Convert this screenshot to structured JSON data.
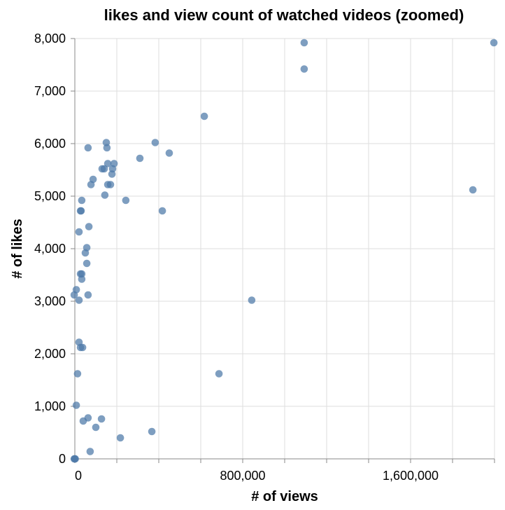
{
  "chart_data": {
    "type": "scatter",
    "title": "likes and view count of watched videos (zoomed)",
    "xlabel": "# of views",
    "ylabel": "# of likes",
    "xlim": [
      0,
      2000000
    ],
    "ylim": [
      0,
      8000
    ],
    "x_ticks": [
      0,
      200000,
      400000,
      600000,
      800000,
      1000000,
      1200000,
      1400000,
      1600000,
      1800000,
      2000000
    ],
    "x_tick_labels": [
      {
        "value": 0,
        "label": "0"
      },
      {
        "value": 800000,
        "label": "800,000"
      },
      {
        "value": 1600000,
        "label": "1,600,000"
      }
    ],
    "y_ticks": [
      0,
      1000,
      2000,
      3000,
      4000,
      5000,
      6000,
      7000,
      8000
    ],
    "y_tick_labels": [
      {
        "value": 0,
        "label": "0"
      },
      {
        "value": 1000,
        "label": "1,000"
      },
      {
        "value": 2000,
        "label": "2,000"
      },
      {
        "value": 3000,
        "label": "3,000"
      },
      {
        "value": 4000,
        "label": "4,000"
      },
      {
        "value": 5000,
        "label": "5,000"
      },
      {
        "value": 6000,
        "label": "6,000"
      },
      {
        "value": 7000,
        "label": "7,000"
      },
      {
        "value": 8000,
        "label": "8,000"
      }
    ],
    "grid": true,
    "point_color": "#4c78a8",
    "points": [
      {
        "x": 1093000,
        "y": 7920
      },
      {
        "x": 1093000,
        "y": 7420
      },
      {
        "x": 1997000,
        "y": 7920
      },
      {
        "x": 617000,
        "y": 6520
      },
      {
        "x": 1897000,
        "y": 5120
      },
      {
        "x": 150000,
        "y": 6020
      },
      {
        "x": 383000,
        "y": 6020
      },
      {
        "x": 63000,
        "y": 5920
      },
      {
        "x": 153000,
        "y": 5920
      },
      {
        "x": 450000,
        "y": 5820
      },
      {
        "x": 310000,
        "y": 5720
      },
      {
        "x": 187000,
        "y": 5620
      },
      {
        "x": 157000,
        "y": 5620
      },
      {
        "x": 130000,
        "y": 5520
      },
      {
        "x": 140000,
        "y": 5520
      },
      {
        "x": 180000,
        "y": 5520
      },
      {
        "x": 177000,
        "y": 5420
      },
      {
        "x": 87000,
        "y": 5320
      },
      {
        "x": 77000,
        "y": 5220
      },
      {
        "x": 157000,
        "y": 5220
      },
      {
        "x": 170000,
        "y": 5220
      },
      {
        "x": 143000,
        "y": 5020
      },
      {
        "x": 243000,
        "y": 4920
      },
      {
        "x": 33000,
        "y": 4920
      },
      {
        "x": 27000,
        "y": 4720
      },
      {
        "x": 30000,
        "y": 4720
      },
      {
        "x": 417000,
        "y": 4720
      },
      {
        "x": 67000,
        "y": 4420
      },
      {
        "x": 20000,
        "y": 4320
      },
      {
        "x": 57000,
        "y": 4020
      },
      {
        "x": 50000,
        "y": 3920
      },
      {
        "x": 57000,
        "y": 3720
      },
      {
        "x": 27000,
        "y": 3520
      },
      {
        "x": 33000,
        "y": 3520
      },
      {
        "x": 33000,
        "y": 3420
      },
      {
        "x": 7000,
        "y": 3220
      },
      {
        "x": -3000,
        "y": 3120
      },
      {
        "x": 63000,
        "y": 3120
      },
      {
        "x": 20000,
        "y": 3020
      },
      {
        "x": 843000,
        "y": 3020
      },
      {
        "x": 20000,
        "y": 2220
      },
      {
        "x": 27000,
        "y": 2120
      },
      {
        "x": 37000,
        "y": 2120
      },
      {
        "x": 13000,
        "y": 1620
      },
      {
        "x": 687000,
        "y": 1620
      },
      {
        "x": 7000,
        "y": 1020
      },
      {
        "x": 63000,
        "y": 780
      },
      {
        "x": 127000,
        "y": 760
      },
      {
        "x": 40000,
        "y": 720
      },
      {
        "x": 100000,
        "y": 600
      },
      {
        "x": 367000,
        "y": 520
      },
      {
        "x": 217000,
        "y": 400
      },
      {
        "x": 73000,
        "y": 140
      },
      {
        "x": -3000,
        "y": 0
      },
      {
        "x": 0,
        "y": 0
      },
      {
        "x": 2000,
        "y": 0
      }
    ]
  }
}
